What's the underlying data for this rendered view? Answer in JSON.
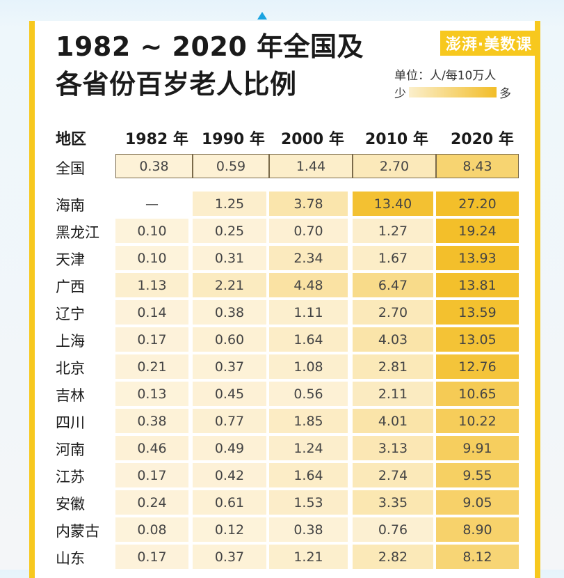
{
  "title_line1": "1982 ~ 2020 年全国及",
  "title_line2": "各省份百岁老人比例",
  "logo_text": "澎湃·美数课",
  "unit": "单位：人/每10万人",
  "legend": {
    "low": "少",
    "high": "多"
  },
  "colors": {
    "accent": "#f7c81e",
    "low": "#fdf3dc",
    "high": "#f3bf2a"
  },
  "chart_data": {
    "type": "heatmap",
    "title": "1982 ~ 2020 年全国及各省份百岁老人比例",
    "unit": "人/每10万人",
    "header": "地区",
    "columns": [
      "1982 年",
      "1990 年",
      "2000 年",
      "2010 年",
      "2020 年"
    ],
    "national": {
      "region": "全国",
      "values": [
        "0.38",
        "0.59",
        "1.44",
        "2.70",
        "8.43"
      ]
    },
    "rows": [
      {
        "region": "海南",
        "values": [
          "—",
          "1.25",
          "3.78",
          "13.40",
          "27.20"
        ]
      },
      {
        "region": "黑龙江",
        "values": [
          "0.10",
          "0.25",
          "0.70",
          "1.27",
          "19.24"
        ]
      },
      {
        "region": "天津",
        "values": [
          "0.10",
          "0.31",
          "2.34",
          "1.67",
          "13.93"
        ]
      },
      {
        "region": "广西",
        "values": [
          "1.13",
          "2.21",
          "4.48",
          "6.47",
          "13.81"
        ]
      },
      {
        "region": "辽宁",
        "values": [
          "0.14",
          "0.38",
          "1.11",
          "2.70",
          "13.59"
        ]
      },
      {
        "region": "上海",
        "values": [
          "0.17",
          "0.60",
          "1.64",
          "4.03",
          "13.05"
        ]
      },
      {
        "region": "北京",
        "values": [
          "0.21",
          "0.37",
          "1.08",
          "2.81",
          "12.76"
        ]
      },
      {
        "region": "吉林",
        "values": [
          "0.13",
          "0.45",
          "0.56",
          "2.11",
          "10.65"
        ]
      },
      {
        "region": "四川",
        "values": [
          "0.38",
          "0.77",
          "1.85",
          "4.01",
          "10.22"
        ]
      },
      {
        "region": "河南",
        "values": [
          "0.46",
          "0.49",
          "1.24",
          "3.13",
          "9.91"
        ]
      },
      {
        "region": "江苏",
        "values": [
          "0.17",
          "0.42",
          "1.64",
          "2.74",
          "9.55"
        ]
      },
      {
        "region": "安徽",
        "values": [
          "0.24",
          "0.61",
          "1.53",
          "3.35",
          "9.05"
        ]
      },
      {
        "region": "内蒙古",
        "values": [
          "0.08",
          "0.12",
          "0.38",
          "0.76",
          "8.90"
        ]
      },
      {
        "region": "山东",
        "values": [
          "0.17",
          "0.37",
          "1.21",
          "2.82",
          "8.12"
        ]
      }
    ]
  }
}
